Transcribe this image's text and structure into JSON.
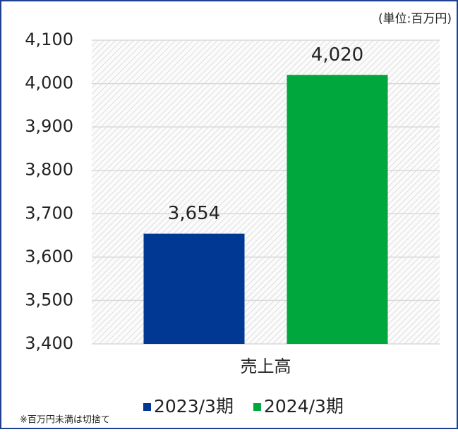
{
  "chart_data": {
    "type": "bar",
    "unit_note": "(単位:百万円)",
    "footnote": "※百万円未満は切捨て",
    "categories": [
      "売上高"
    ],
    "series": [
      {
        "name": "2023/3期",
        "color": "#003893",
        "values": [
          3654
        ],
        "value_labels": [
          "3,654"
        ]
      },
      {
        "name": "2024/3期",
        "color": "#00a73c",
        "values": [
          4020
        ],
        "value_labels": [
          "4,020"
        ]
      }
    ],
    "ylim": [
      3400,
      4100
    ],
    "yticks": [
      {
        "value": 3400,
        "label": "3,400"
      },
      {
        "value": 3500,
        "label": "3,500"
      },
      {
        "value": 3600,
        "label": "3,600"
      },
      {
        "value": 3700,
        "label": "3,700"
      },
      {
        "value": 3800,
        "label": "3,800"
      },
      {
        "value": 3900,
        "label": "3,900"
      },
      {
        "value": 4000,
        "label": "4,000"
      },
      {
        "value": 4100,
        "label": "4,100"
      }
    ],
    "grid": true,
    "legend": "bottom"
  }
}
